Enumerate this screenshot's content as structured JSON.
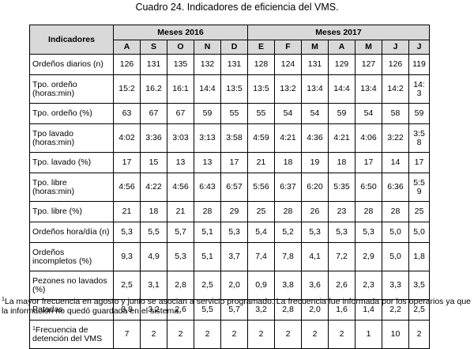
{
  "title": "Cuadro 24. Indicadores de eficiencia del VMS.",
  "table": {
    "indicator_header": "Indicadores",
    "groups": [
      {
        "label": "Meses 2016",
        "months": [
          "A",
          "S",
          "O",
          "N",
          "D"
        ]
      },
      {
        "label": "Meses 2017",
        "months": [
          "E",
          "F",
          "M",
          "A",
          "M",
          "J",
          "J"
        ]
      }
    ],
    "rows": [
      {
        "label": "Ordeños diarios (n)",
        "values": [
          "126",
          "131",
          "135",
          "132",
          "131",
          "128",
          "124",
          "131",
          "129",
          "127",
          "126",
          "119"
        ]
      },
      {
        "label": "Tpo. ordeño (horas:min)",
        "values": [
          "15:2",
          "16.2",
          "16:1",
          "14:4",
          "13:5",
          "13:5",
          "13:2",
          "13:4",
          "14:4",
          "13:4",
          "14:2",
          "14: 3"
        ]
      },
      {
        "label": "Tpo. ordeño (%)",
        "values": [
          "63",
          "67",
          "67",
          "59",
          "55",
          "55",
          "54",
          "54",
          "59",
          "54",
          "58",
          "59"
        ]
      },
      {
        "label": "Tpo lavado (horas:min)",
        "values": [
          "4:02",
          "3:36",
          "3:03",
          "3:13",
          "3:58",
          "4:59",
          "4:21",
          "4:36",
          "4:21",
          "4:06",
          "3:22",
          "3:5 8"
        ]
      },
      {
        "label": "Tpo. lavado (%)",
        "values": [
          "17",
          "15",
          "13",
          "13",
          "17",
          "21",
          "18",
          "19",
          "18",
          "17",
          "14",
          "17"
        ]
      },
      {
        "label": "Tpo. libre (horas:min)",
        "values": [
          "4:56",
          "4:22",
          "4:56",
          "6:43",
          "6:57",
          "5:56",
          "6:37",
          "6:20",
          "5:35",
          "6:50",
          "6:36",
          "5:5 9"
        ]
      },
      {
        "label": "Tpo. libre (%)",
        "values": [
          "21",
          "18",
          "21",
          "28",
          "29",
          "25",
          "28",
          "26",
          "23",
          "28",
          "28",
          "25"
        ]
      },
      {
        "label": "Ordeños hora/día (n)",
        "values": [
          "5,3",
          "5,5",
          "5,7",
          "5,1",
          "5,3",
          "5,4",
          "5,2",
          "5,3",
          "5,3",
          "5,3",
          "5,0",
          "5,0"
        ]
      },
      {
        "label": "Ordeños incompletos (%)",
        "values": [
          "9,3",
          "4,9",
          "5,3",
          "5,1",
          "3,7",
          "7,4",
          "7,8",
          "4,1",
          "7,2",
          "2,9",
          "5,0",
          "1,8"
        ]
      },
      {
        "label": "Pezones no lavados (%)",
        "values": [
          "2,5",
          "3,1",
          "2,8",
          "2,5",
          "2,0",
          "0,9",
          "3,8",
          "3,6",
          "2,6",
          "2,3",
          "3,3",
          "3,5"
        ]
      },
      {
        "label": "Patadas",
        "values": [
          "3,8",
          "3,2",
          "2,6",
          "5,5",
          "5,7",
          "3,2",
          "2,8",
          "2,0",
          "1,6",
          "1,4",
          "2,2",
          "2,5"
        ]
      },
      {
        "label": "Frecuencia de detención del VMS",
        "marker": "1",
        "values": [
          "7",
          "2",
          "2",
          "2",
          "2",
          "2",
          "2",
          "2",
          "2",
          "1",
          "10",
          "2"
        ]
      }
    ]
  },
  "footnote": {
    "marker": "1",
    "text": "La mayor frecuencia en agosto y junio se asocian a servicio programado. La frecuencia fue informada por los operarios ya que la información no quedó guardada en el sistema."
  }
}
